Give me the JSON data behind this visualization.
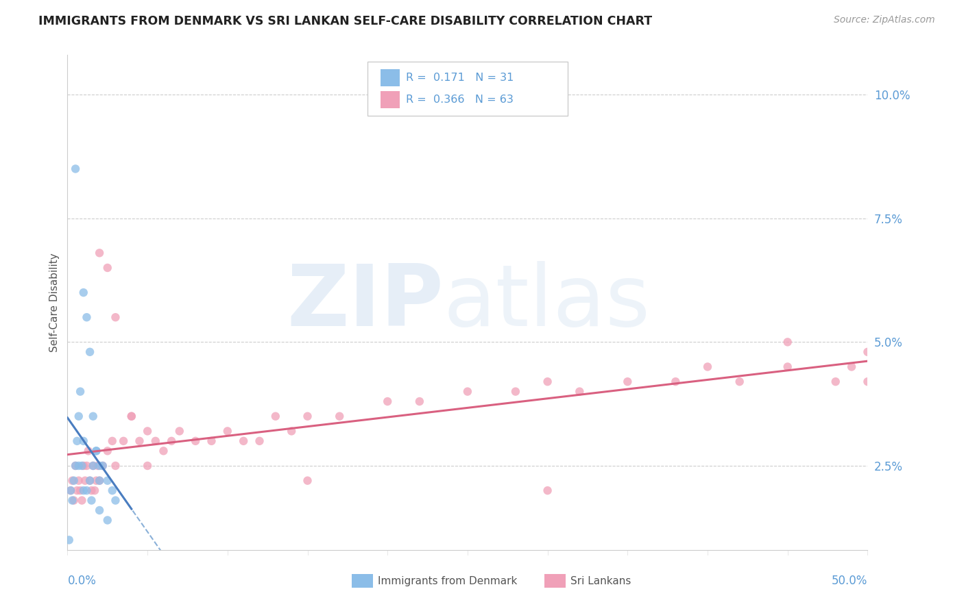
{
  "title": "IMMIGRANTS FROM DENMARK VS SRI LANKAN SELF-CARE DISABILITY CORRELATION CHART",
  "source": "Source: ZipAtlas.com",
  "ylabel": "Self-Care Disability",
  "right_ytick_labels": [
    "2.5%",
    "5.0%",
    "7.5%",
    "10.0%"
  ],
  "right_yticks": [
    0.025,
    0.05,
    0.075,
    0.1
  ],
  "xlim": [
    0.0,
    0.5
  ],
  "ylim": [
    0.008,
    0.108
  ],
  "legend_r1": "R =  0.171   N = 31",
  "legend_r2": "R =  0.366   N = 63",
  "denmark_color": "#8bbde8",
  "srilanka_color": "#f0a0b8",
  "denmark_line_color": "#4a7dc0",
  "srilanka_line_color": "#d96080",
  "dashed_line_color": "#8ab0d8",
  "denmark_scatter_x": [
    0.001,
    0.002,
    0.003,
    0.004,
    0.005,
    0.006,
    0.007,
    0.008,
    0.009,
    0.01,
    0.012,
    0.014,
    0.016,
    0.018,
    0.02,
    0.022,
    0.01,
    0.012,
    0.014,
    0.016,
    0.018,
    0.02,
    0.025,
    0.028,
    0.03,
    0.005,
    0.007,
    0.01,
    0.015,
    0.02,
    0.025
  ],
  "denmark_scatter_y": [
    0.01,
    0.02,
    0.018,
    0.022,
    0.025,
    0.03,
    0.035,
    0.04,
    0.025,
    0.03,
    0.02,
    0.022,
    0.025,
    0.028,
    0.022,
    0.025,
    0.06,
    0.055,
    0.048,
    0.035,
    0.028,
    0.025,
    0.022,
    0.02,
    0.018,
    0.085,
    0.025,
    0.02,
    0.018,
    0.016,
    0.014
  ],
  "srilanka_scatter_x": [
    0.002,
    0.003,
    0.004,
    0.005,
    0.006,
    0.007,
    0.008,
    0.009,
    0.01,
    0.011,
    0.012,
    0.013,
    0.014,
    0.015,
    0.016,
    0.017,
    0.018,
    0.019,
    0.02,
    0.022,
    0.025,
    0.028,
    0.03,
    0.035,
    0.04,
    0.045,
    0.05,
    0.055,
    0.06,
    0.065,
    0.07,
    0.08,
    0.09,
    0.1,
    0.11,
    0.12,
    0.13,
    0.14,
    0.15,
    0.17,
    0.2,
    0.22,
    0.25,
    0.28,
    0.3,
    0.32,
    0.35,
    0.38,
    0.4,
    0.42,
    0.45,
    0.48,
    0.49,
    0.5,
    0.02,
    0.025,
    0.03,
    0.04,
    0.05,
    0.15,
    0.3,
    0.45,
    0.5
  ],
  "srilanka_scatter_y": [
    0.02,
    0.022,
    0.018,
    0.025,
    0.02,
    0.022,
    0.02,
    0.018,
    0.025,
    0.022,
    0.025,
    0.028,
    0.022,
    0.02,
    0.025,
    0.02,
    0.022,
    0.025,
    0.022,
    0.025,
    0.028,
    0.03,
    0.025,
    0.03,
    0.035,
    0.03,
    0.032,
    0.03,
    0.028,
    0.03,
    0.032,
    0.03,
    0.03,
    0.032,
    0.03,
    0.03,
    0.035,
    0.032,
    0.035,
    0.035,
    0.038,
    0.038,
    0.04,
    0.04,
    0.042,
    0.04,
    0.042,
    0.042,
    0.045,
    0.042,
    0.045,
    0.042,
    0.045,
    0.048,
    0.068,
    0.065,
    0.055,
    0.035,
    0.025,
    0.022,
    0.02,
    0.05,
    0.042
  ]
}
